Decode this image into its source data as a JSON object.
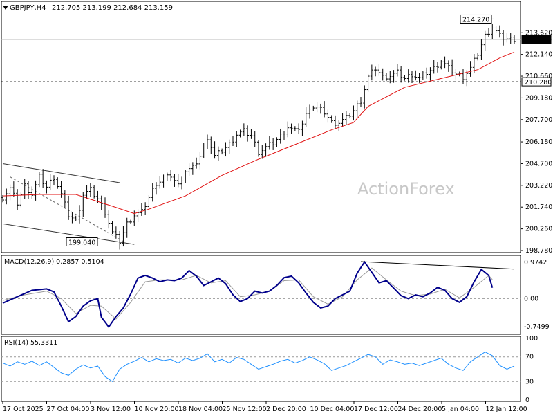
{
  "window": {
    "symbol_label": "GBPJPY,H4",
    "ohlc_label": "212.705 213.199 212.684 213.159",
    "collapse_icon": "triangle-down-icon",
    "watermark": "ActionForex"
  },
  "chart_data": [
    {
      "type": "candlestick",
      "name": "price",
      "ylim": [
        198.78,
        215.0
      ],
      "y_ticks": [
        "213.620",
        "212.140",
        "210.660",
        "209.180",
        "207.700",
        "206.180",
        "204.700",
        "203.220",
        "201.740",
        "200.260",
        "198.780"
      ],
      "x_ticks": [
        "17 Oct 2025",
        "27 Oct 04:00",
        "3 Nov 12:00",
        "10 Nov 20:00",
        "18 Nov 04:00",
        "25 Nov 12:00",
        "2 Dec 20:00",
        "10 Dec 04:00",
        "17 Dec 12:00",
        "24 Dec 20:00",
        "5 Jan 04:00",
        "12 Jan 12:00"
      ],
      "current_price": "213.159",
      "support_level": "210.280",
      "annotations": [
        {
          "label": "214.270",
          "value": 214.27
        },
        {
          "label": "199.040",
          "value": 199.04
        }
      ],
      "close_path": [
        [
          0,
          202.4
        ],
        [
          2,
          203.0
        ],
        [
          4,
          202.0
        ],
        [
          6,
          203.2
        ],
        [
          8,
          202.6
        ],
        [
          10,
          203.8
        ],
        [
          12,
          203.1
        ],
        [
          14,
          203.8
        ],
        [
          16,
          202.6
        ],
        [
          18,
          201.2
        ],
        [
          20,
          200.8
        ],
        [
          22,
          202.6
        ],
        [
          24,
          202.9
        ],
        [
          26,
          202.3
        ],
        [
          28,
          201.4
        ],
        [
          30,
          200.0
        ],
        [
          32,
          199.4
        ],
        [
          34,
          200.6
        ],
        [
          36,
          201.2
        ],
        [
          38,
          201.4
        ],
        [
          40,
          202.4
        ],
        [
          42,
          203.4
        ],
        [
          44,
          203.6
        ],
        [
          46,
          203.9
        ],
        [
          48,
          203.2
        ],
        [
          50,
          204.2
        ],
        [
          52,
          204.4
        ],
        [
          54,
          205.2
        ],
        [
          56,
          206.5
        ],
        [
          58,
          205.2
        ],
        [
          60,
          205.6
        ],
        [
          62,
          206.0
        ],
        [
          64,
          206.7
        ],
        [
          66,
          206.9
        ],
        [
          68,
          206.6
        ],
        [
          70,
          205.5
        ],
        [
          72,
          205.8
        ],
        [
          74,
          206.1
        ],
        [
          76,
          206.6
        ],
        [
          78,
          207.2
        ],
        [
          80,
          206.9
        ],
        [
          82,
          207.4
        ],
        [
          84,
          208.6
        ],
        [
          86,
          208.5
        ],
        [
          88,
          208.2
        ],
        [
          90,
          207.5
        ],
        [
          92,
          207.5
        ],
        [
          94,
          207.8
        ],
        [
          96,
          208.3
        ],
        [
          98,
          209.0
        ],
        [
          100,
          210.6
        ],
        [
          102,
          211.2
        ],
        [
          104,
          210.6
        ],
        [
          106,
          210.7
        ],
        [
          108,
          210.9
        ],
        [
          110,
          210.5
        ],
        [
          112,
          210.8
        ],
        [
          114,
          210.5
        ],
        [
          116,
          210.9
        ],
        [
          118,
          211.2
        ],
        [
          120,
          211.7
        ],
        [
          122,
          211.2
        ],
        [
          124,
          210.8
        ],
        [
          126,
          210.6
        ],
        [
          128,
          211.2
        ],
        [
          130,
          212.2
        ],
        [
          132,
          213.4
        ],
        [
          134,
          214.0
        ],
        [
          136,
          213.4
        ],
        [
          138,
          213.2
        ],
        [
          140,
          213.2
        ]
      ],
      "ma_path": [
        [
          0,
          202.5
        ],
        [
          10,
          202.6
        ],
        [
          20,
          202.6
        ],
        [
          30,
          201.8
        ],
        [
          36,
          201.3
        ],
        [
          40,
          201.6
        ],
        [
          50,
          202.5
        ],
        [
          60,
          203.9
        ],
        [
          70,
          205.0
        ],
        [
          80,
          206.0
        ],
        [
          90,
          207.0
        ],
        [
          96,
          207.5
        ],
        [
          100,
          208.6
        ],
        [
          110,
          209.9
        ],
        [
          120,
          210.5
        ],
        [
          130,
          211.1
        ],
        [
          136,
          211.9
        ],
        [
          140,
          212.3
        ]
      ],
      "channel_lines": [
        {
          "from": [
            0,
            204.7
          ],
          "to": [
            32,
            203.4
          ]
        },
        {
          "from": [
            0,
            200.6
          ],
          "to": [
            36,
            199.2
          ]
        },
        {
          "from": [
            2,
            203.8
          ],
          "to": [
            33,
            199.4
          ]
        }
      ]
    },
    {
      "type": "line",
      "name": "macd",
      "title": "MACD(12,26,9) 0.2857 0.5104",
      "ylim": [
        -0.9,
        1.1
      ],
      "y_ticks": [
        "0.9742",
        "0.00",
        "-0.7499"
      ],
      "main_path": [
        [
          0,
          -0.12
        ],
        [
          4,
          0.05
        ],
        [
          8,
          0.22
        ],
        [
          12,
          0.26
        ],
        [
          14,
          0.18
        ],
        [
          16,
          -0.2
        ],
        [
          18,
          -0.62
        ],
        [
          20,
          -0.48
        ],
        [
          22,
          -0.2
        ],
        [
          24,
          -0.06
        ],
        [
          26,
          0.0
        ],
        [
          27,
          -0.5
        ],
        [
          29,
          -0.76
        ],
        [
          31,
          -0.48
        ],
        [
          33,
          -0.25
        ],
        [
          35,
          0.12
        ],
        [
          37,
          0.55
        ],
        [
          39,
          0.62
        ],
        [
          41,
          0.55
        ],
        [
          43,
          0.45
        ],
        [
          45,
          0.5
        ],
        [
          47,
          0.48
        ],
        [
          49,
          0.55
        ],
        [
          51,
          0.75
        ],
        [
          53,
          0.6
        ],
        [
          55,
          0.35
        ],
        [
          57,
          0.45
        ],
        [
          59,
          0.55
        ],
        [
          61,
          0.4
        ],
        [
          63,
          0.1
        ],
        [
          65,
          -0.08
        ],
        [
          67,
          0.0
        ],
        [
          69,
          0.2
        ],
        [
          71,
          0.15
        ],
        [
          73,
          0.2
        ],
        [
          75,
          0.35
        ],
        [
          77,
          0.56
        ],
        [
          79,
          0.6
        ],
        [
          81,
          0.42
        ],
        [
          83,
          0.15
        ],
        [
          85,
          -0.1
        ],
        [
          87,
          -0.25
        ],
        [
          89,
          -0.2
        ],
        [
          91,
          0.0
        ],
        [
          93,
          0.1
        ],
        [
          95,
          0.2
        ],
        [
          97,
          0.68
        ],
        [
          99,
          0.98
        ],
        [
          101,
          0.7
        ],
        [
          103,
          0.42
        ],
        [
          105,
          0.48
        ],
        [
          107,
          0.28
        ],
        [
          109,
          0.08
        ],
        [
          111,
          0.0
        ],
        [
          113,
          0.1
        ],
        [
          115,
          0.05
        ],
        [
          117,
          0.15
        ],
        [
          119,
          0.3
        ],
        [
          121,
          0.22
        ],
        [
          123,
          0.0
        ],
        [
          125,
          -0.1
        ],
        [
          127,
          0.05
        ],
        [
          129,
          0.45
        ],
        [
          131,
          0.78
        ],
        [
          133,
          0.62
        ],
        [
          134,
          0.29
        ]
      ],
      "signal_path": [
        [
          0,
          -0.05
        ],
        [
          6,
          0.1
        ],
        [
          12,
          0.2
        ],
        [
          16,
          0.0
        ],
        [
          20,
          -0.4
        ],
        [
          24,
          -0.18
        ],
        [
          27,
          -0.2
        ],
        [
          31,
          -0.55
        ],
        [
          35,
          -0.1
        ],
        [
          39,
          0.45
        ],
        [
          43,
          0.5
        ],
        [
          49,
          0.5
        ],
        [
          53,
          0.62
        ],
        [
          57,
          0.42
        ],
        [
          61,
          0.48
        ],
        [
          65,
          0.05
        ],
        [
          69,
          0.1
        ],
        [
          73,
          0.2
        ],
        [
          77,
          0.48
        ],
        [
          81,
          0.5
        ],
        [
          85,
          0.05
        ],
        [
          89,
          -0.15
        ],
        [
          93,
          0.05
        ],
        [
          97,
          0.5
        ],
        [
          101,
          0.82
        ],
        [
          105,
          0.5
        ],
        [
          109,
          0.2
        ],
        [
          113,
          0.08
        ],
        [
          117,
          0.12
        ],
        [
          121,
          0.25
        ],
        [
          125,
          0.02
        ],
        [
          129,
          0.3
        ],
        [
          133,
          0.62
        ],
        [
          134,
          0.51
        ]
      ],
      "divergence_line": {
        "from": [
          98,
          0.99
        ],
        "to": [
          140,
          0.79
        ]
      }
    },
    {
      "type": "line",
      "name": "rsi",
      "title": "RSI(14) 55.3311",
      "ylim": [
        0,
        100
      ],
      "y_ticks": [
        "100",
        "70",
        "30",
        "0"
      ],
      "levels": [
        70,
        30
      ],
      "path": [
        [
          0,
          60
        ],
        [
          2,
          55
        ],
        [
          4,
          62
        ],
        [
          6,
          58
        ],
        [
          8,
          63
        ],
        [
          10,
          56
        ],
        [
          12,
          62
        ],
        [
          14,
          53
        ],
        [
          16,
          44
        ],
        [
          18,
          40
        ],
        [
          20,
          50
        ],
        [
          22,
          57
        ],
        [
          24,
          52
        ],
        [
          26,
          55
        ],
        [
          28,
          38
        ],
        [
          30,
          30
        ],
        [
          32,
          50
        ],
        [
          34,
          58
        ],
        [
          36,
          63
        ],
        [
          38,
          69
        ],
        [
          40,
          62
        ],
        [
          42,
          67
        ],
        [
          44,
          64
        ],
        [
          46,
          66
        ],
        [
          48,
          60
        ],
        [
          50,
          68
        ],
        [
          52,
          64
        ],
        [
          54,
          68
        ],
        [
          56,
          75
        ],
        [
          58,
          62
        ],
        [
          60,
          66
        ],
        [
          62,
          60
        ],
        [
          64,
          69
        ],
        [
          66,
          66
        ],
        [
          68,
          58
        ],
        [
          70,
          50
        ],
        [
          72,
          54
        ],
        [
          74,
          58
        ],
        [
          76,
          63
        ],
        [
          78,
          66
        ],
        [
          80,
          60
        ],
        [
          82,
          64
        ],
        [
          84,
          70
        ],
        [
          86,
          65
        ],
        [
          88,
          59
        ],
        [
          90,
          48
        ],
        [
          92,
          52
        ],
        [
          94,
          56
        ],
        [
          96,
          62
        ],
        [
          98,
          68
        ],
        [
          100,
          74
        ],
        [
          102,
          70
        ],
        [
          104,
          58
        ],
        [
          106,
          65
        ],
        [
          108,
          62
        ],
        [
          110,
          58
        ],
        [
          112,
          60
        ],
        [
          114,
          56
        ],
        [
          116,
          60
        ],
        [
          118,
          64
        ],
        [
          120,
          68
        ],
        [
          122,
          58
        ],
        [
          124,
          52
        ],
        [
          126,
          48
        ],
        [
          128,
          62
        ],
        [
          130,
          70
        ],
        [
          132,
          78
        ],
        [
          134,
          72
        ],
        [
          136,
          56
        ],
        [
          138,
          50
        ],
        [
          140,
          55
        ]
      ]
    }
  ]
}
